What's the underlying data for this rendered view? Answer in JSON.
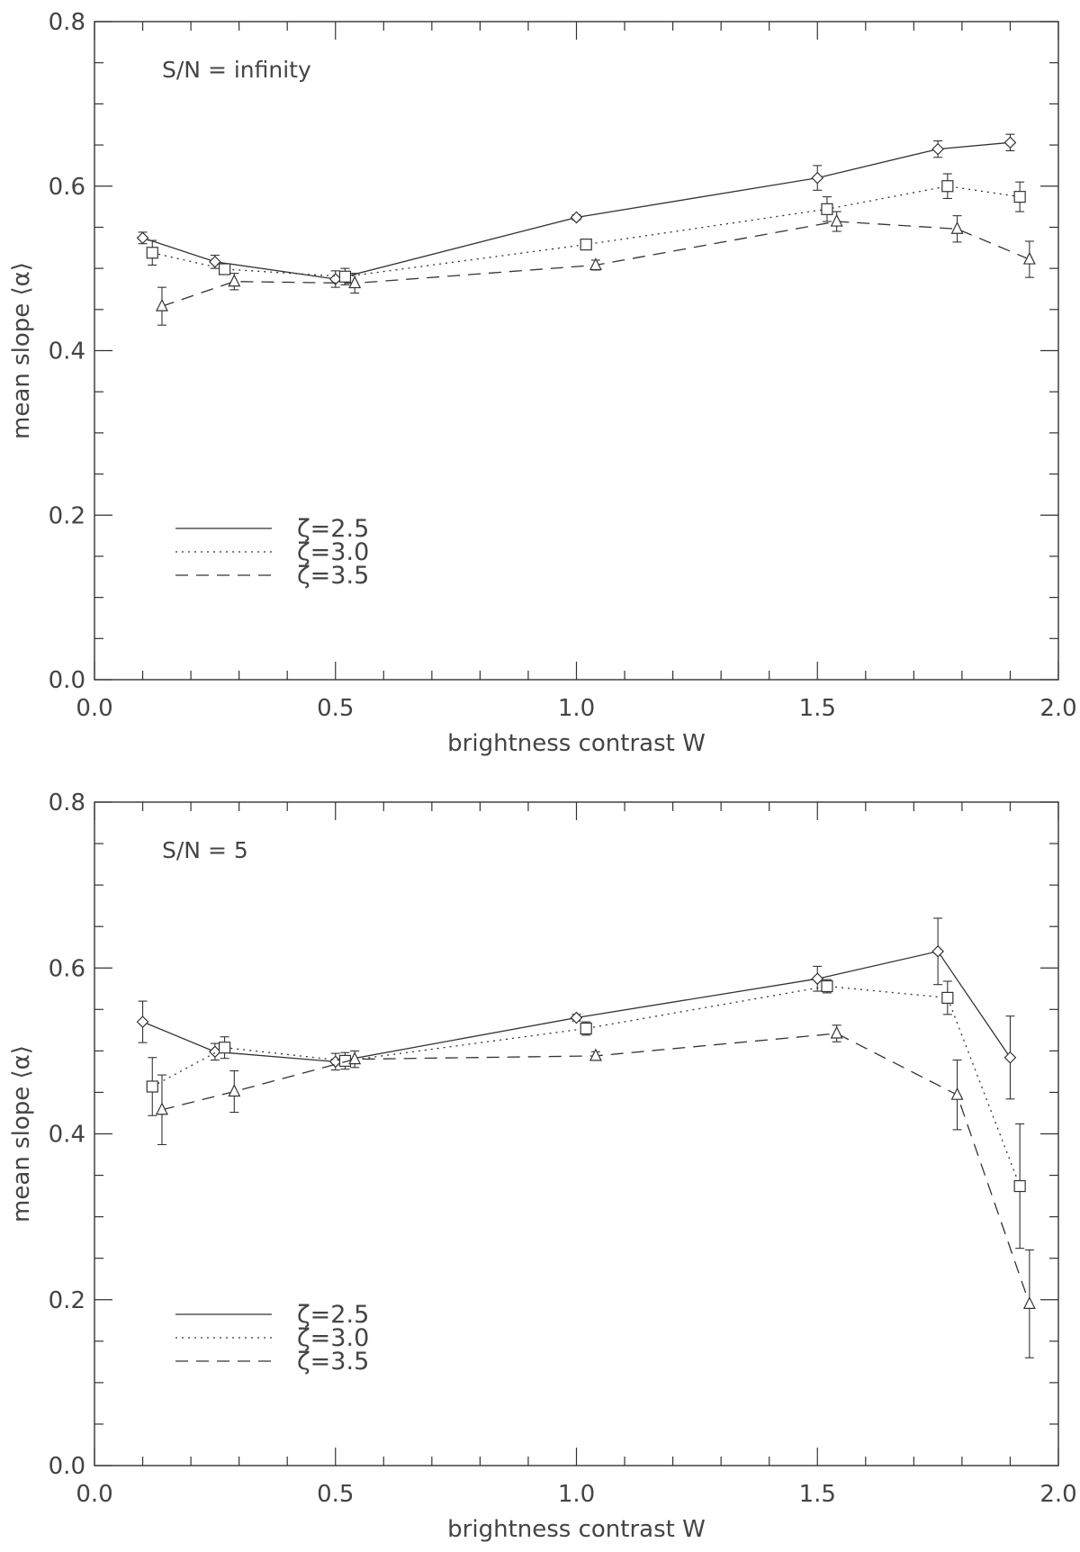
{
  "chart_data": [
    {
      "type": "line",
      "title": "",
      "annotation": "S/N = infinity",
      "xlabel": "brightness contrast W",
      "ylabel": "mean slope ⟨α⟩",
      "xlim": [
        0.0,
        2.0
      ],
      "ylim": [
        0.0,
        0.8
      ],
      "x_ticks": [
        "0.0",
        "0.5",
        "1.0",
        "1.5",
        "2.0"
      ],
      "y_ticks": [
        "0.0",
        "0.2",
        "0.4",
        "0.6",
        "0.8"
      ],
      "grid": false,
      "legend_position": "lower-left",
      "series": [
        {
          "name": "ζ=2.5",
          "line": "solid",
          "marker": "diamond",
          "x": [
            0.1,
            0.25,
            0.5,
            1.0,
            1.5,
            1.75,
            1.9
          ],
          "y": [
            0.537,
            0.508,
            0.487,
            0.562,
            0.61,
            0.645,
            0.653
          ],
          "err": [
            0.007,
            0.008,
            0.01,
            0.003,
            0.015,
            0.01,
            0.01
          ]
        },
        {
          "name": "ζ=3.0",
          "line": "dotted",
          "marker": "square",
          "x": [
            0.12,
            0.27,
            0.52,
            1.02,
            1.52,
            1.77,
            1.92
          ],
          "y": [
            0.519,
            0.499,
            0.49,
            0.529,
            0.572,
            0.6,
            0.587
          ],
          "err": [
            0.015,
            0.006,
            0.01,
            0.005,
            0.015,
            0.015,
            0.018
          ]
        },
        {
          "name": "ζ=3.5",
          "line": "dashed",
          "marker": "triangle",
          "x": [
            0.14,
            0.29,
            0.54,
            1.04,
            1.54,
            1.79,
            1.94
          ],
          "y": [
            0.454,
            0.484,
            0.482,
            0.504,
            0.557,
            0.548,
            0.511
          ],
          "err": [
            0.023,
            0.01,
            0.012,
            0.006,
            0.012,
            0.016,
            0.022
          ]
        }
      ]
    },
    {
      "type": "line",
      "title": "",
      "annotation": "S/N = 5",
      "xlabel": "brightness contrast W",
      "ylabel": "mean slope ⟨α⟩",
      "xlim": [
        0.0,
        2.0
      ],
      "ylim": [
        0.0,
        0.8
      ],
      "x_ticks": [
        "0.0",
        "0.5",
        "1.0",
        "1.5",
        "2.0"
      ],
      "y_ticks": [
        "0.0",
        "0.2",
        "0.4",
        "0.6",
        "0.8"
      ],
      "grid": false,
      "legend_position": "lower-left",
      "series": [
        {
          "name": "ζ=2.5",
          "line": "solid",
          "marker": "diamond",
          "x": [
            0.1,
            0.25,
            0.5,
            1.0,
            1.5,
            1.75,
            1.9
          ],
          "y": [
            0.535,
            0.499,
            0.487,
            0.54,
            0.587,
            0.62,
            0.492
          ],
          "err": [
            0.025,
            0.01,
            0.01,
            0.004,
            0.015,
            0.04,
            0.05
          ]
        },
        {
          "name": "ζ=3.0",
          "line": "dotted",
          "marker": "square",
          "x": [
            0.12,
            0.27,
            0.52,
            1.02,
            1.52,
            1.77,
            1.92
          ],
          "y": [
            0.457,
            0.504,
            0.488,
            0.527,
            0.578,
            0.564,
            0.337
          ],
          "err": [
            0.035,
            0.013,
            0.01,
            0.008,
            0.008,
            0.02,
            0.075
          ]
        },
        {
          "name": "ζ=3.5",
          "line": "dashed",
          "marker": "triangle",
          "x": [
            0.14,
            0.29,
            0.54,
            1.04,
            1.54,
            1.79,
            1.94
          ],
          "y": [
            0.429,
            0.451,
            0.49,
            0.494,
            0.521,
            0.447,
            0.195
          ],
          "err": [
            0.042,
            0.025,
            0.01,
            0.005,
            0.01,
            0.042,
            0.065
          ]
        }
      ]
    }
  ]
}
